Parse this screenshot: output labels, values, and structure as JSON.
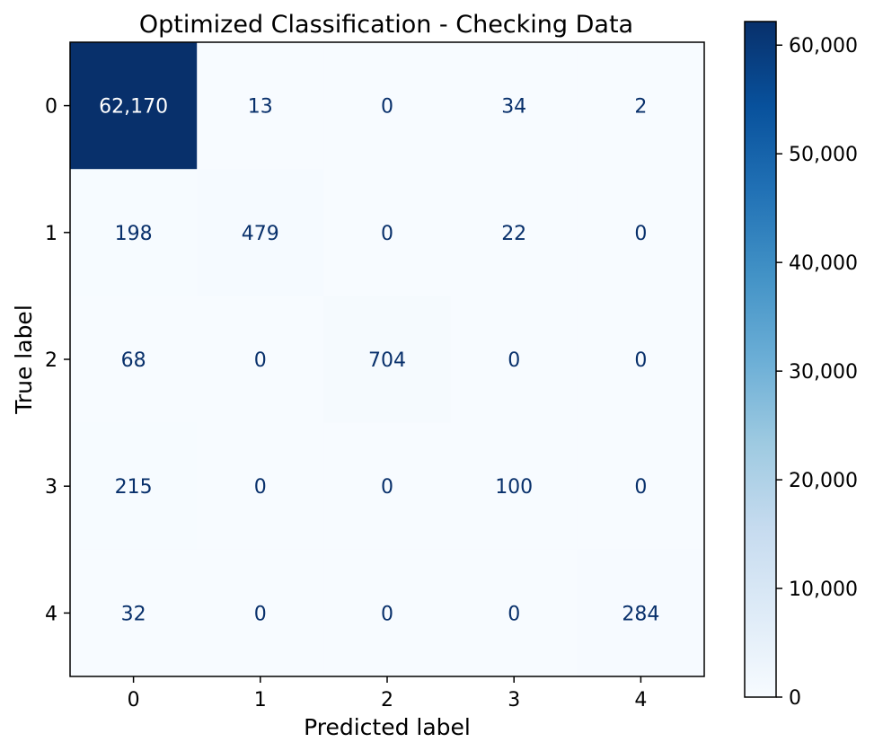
{
  "chart_data": {
    "type": "heatmap",
    "title": "Optimized Classification - Checking Data",
    "xlabel": "Predicted label",
    "ylabel": "True label",
    "x_categories": [
      "0",
      "1",
      "2",
      "3",
      "4"
    ],
    "y_categories": [
      "0",
      "1",
      "2",
      "3",
      "4"
    ],
    "cell_labels": [
      [
        "62,170",
        "13",
        "0",
        "34",
        "2"
      ],
      [
        "198",
        "479",
        "0",
        "22",
        "0"
      ],
      [
        "68",
        "0",
        "704",
        "0",
        "0"
      ],
      [
        "215",
        "0",
        "0",
        "100",
        "0"
      ],
      [
        "32",
        "0",
        "0",
        "0",
        "284"
      ]
    ],
    "values": [
      [
        62170,
        13,
        0,
        34,
        2
      ],
      [
        198,
        479,
        0,
        22,
        0
      ],
      [
        68,
        0,
        704,
        0,
        0
      ],
      [
        215,
        0,
        0,
        100,
        0
      ],
      [
        32,
        0,
        0,
        0,
        284
      ]
    ],
    "colormap": "Blues",
    "color_range": [
      0,
      62170
    ],
    "colorbar": {
      "ticks": [
        0,
        10000,
        20000,
        30000,
        40000,
        50000,
        60000
      ],
      "tick_labels": [
        "0",
        "10,000",
        "20,000",
        "30,000",
        "40,000",
        "50,000",
        "60,000"
      ]
    },
    "text_colors": {
      "dark_cell": "#ffffff",
      "light_cell": "#08306b"
    }
  }
}
